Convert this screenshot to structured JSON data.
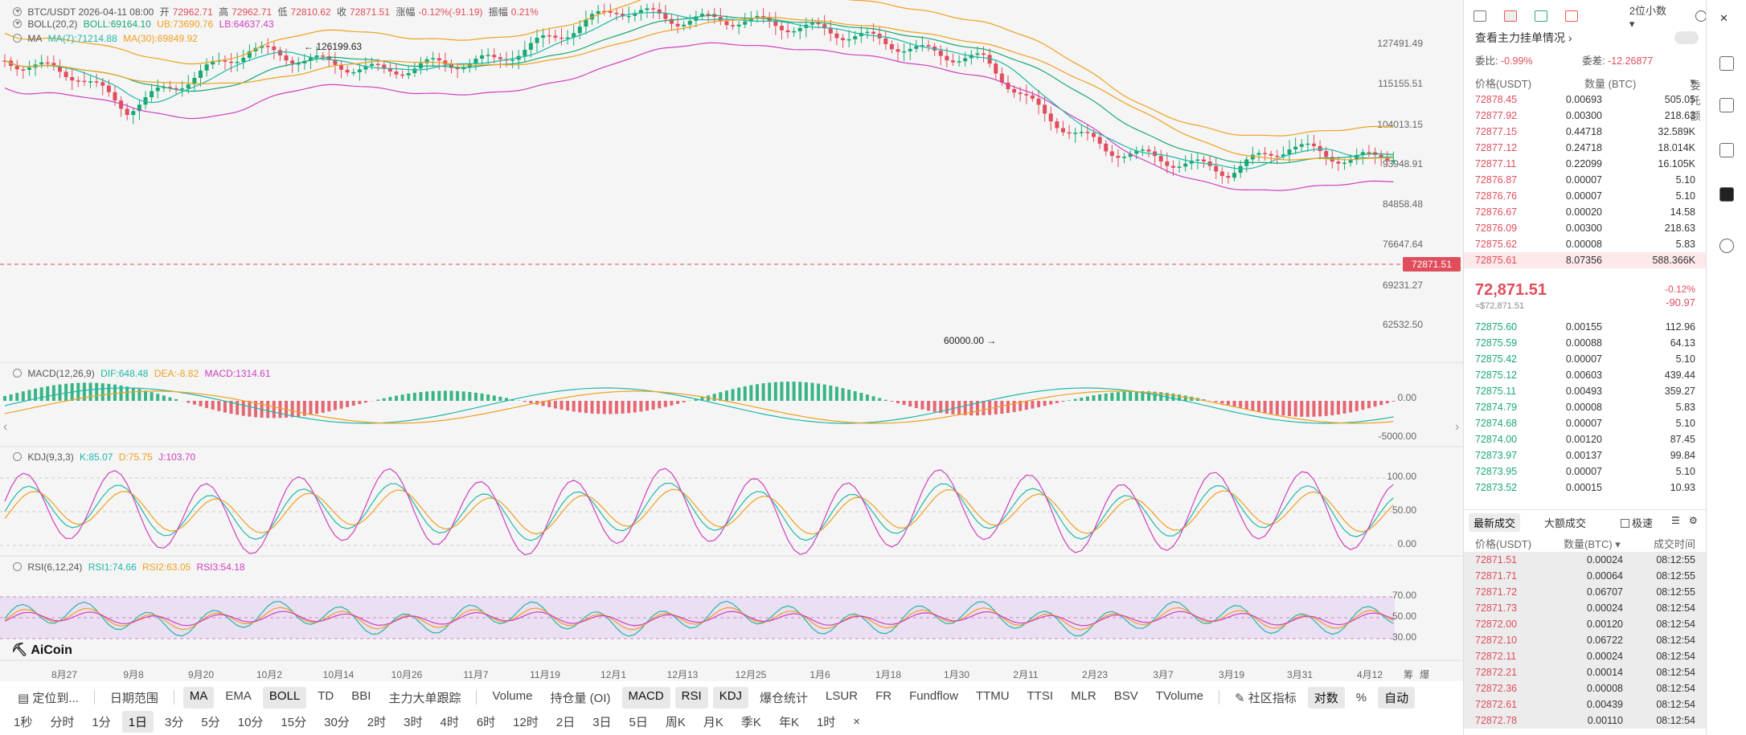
{
  "chart_header": {
    "pair_line": "BTC/USDT  2026-04-11 08:00",
    "open_label": "开",
    "open": "72962.71",
    "high_label": "高",
    "high": "72962.71",
    "low_label": "低",
    "low": "72810.62",
    "close_label": "收",
    "close": "72871.51",
    "change_label": "涨幅",
    "change": "-0.12%(-91.19)",
    "amp_label": "振幅",
    "amp": "0.21%",
    "boll": "BOLL(20,2)",
    "boll_mid": "BOLL:69164.10",
    "boll_ub": "UB:73690.76",
    "boll_lb": "LB:64637.43",
    "ma": "MA",
    "ma7": "MA(7):71214.88",
    "ma30": "MA(30):69849.92"
  },
  "price_axis": [
    "127491.49",
    "115155.51",
    "104013.15",
    "93948.91",
    "84858.48",
    "76647.64",
    "69231.27",
    "62532.50"
  ],
  "current_price_tag": "72871.51",
  "annotations": {
    "high": "126199.63",
    "low": "60000.00"
  },
  "macd": {
    "title": "MACD(12,26,9)",
    "dif": "DIF:648.48",
    "dea": "DEA:-8.82",
    "macd": "MACD:1314.61",
    "axis": [
      "0.00",
      "-5000.00"
    ]
  },
  "kdj": {
    "title": "KDJ(9,3,3)",
    "k": "K:85.07",
    "d": "D:75.75",
    "j": "J:103.70",
    "axis": [
      "100.00",
      "50.00",
      "0.00"
    ]
  },
  "rsi": {
    "title": "RSI(6,12,24)",
    "r1": "RSI1:74.66",
    "r2": "RSI2:63.05",
    "r3": "RSI3:54.18",
    "axis": [
      "70.00",
      "50.00",
      "30.00"
    ]
  },
  "logo": "AiCoin",
  "date_axis": [
    "8月27",
    "9月8",
    "9月20",
    "10月2",
    "10月14",
    "10月26",
    "11月7",
    "11月19",
    "12月1",
    "12月13",
    "12月25",
    "1月6",
    "1月18",
    "1月30",
    "2月11",
    "2月23",
    "3月7",
    "3月19",
    "3月31",
    "4月12"
  ],
  "corner_labels": [
    "筹",
    "爆"
  ],
  "toolbar1": {
    "locate": "定位到...",
    "range": "日期范围",
    "indicators": [
      "MA",
      "EMA",
      "BOLL",
      "TD",
      "BBI",
      "主力大单跟踪"
    ],
    "indicators_on": [
      "MA",
      "BOLL"
    ],
    "subs": [
      "Volume",
      "持仓量 (OI)",
      "MACD",
      "RSI",
      "KDJ",
      "爆仓统计",
      "LSUR",
      "FR",
      "Fundflow",
      "TTMU",
      "TTSI",
      "MLR",
      "BSV",
      "TVolume"
    ],
    "subs_on": [
      "MACD",
      "RSI",
      "KDJ"
    ],
    "community": "社区指标",
    "log": "对数",
    "pct": "%",
    "auto": "自动"
  },
  "toolbar2": {
    "intervals": [
      "1秒",
      "分时",
      "1分",
      "1日",
      "3分",
      "5分",
      "10分",
      "15分",
      "30分",
      "2时",
      "3时",
      "4时",
      "6时",
      "12时",
      "2日",
      "3日",
      "5日",
      "周K",
      "月K",
      "季K",
      "年K",
      "1时"
    ],
    "active": "1日",
    "close": "×"
  },
  "panel": {
    "precision": "2位小数",
    "depth_title": "查看主力挂单情况",
    "ratio_label": "委比:",
    "ratio": "-0.99%",
    "diff_label": "委差:",
    "diff": "-12.26877",
    "headers": {
      "price": "价格(USDT)",
      "qty": "数量 (BTC)",
      "total": "委托额"
    },
    "asks": [
      {
        "p": "72878.45",
        "q": "0.00693",
        "t": "505.05"
      },
      {
        "p": "72877.92",
        "q": "0.00300",
        "t": "218.63"
      },
      {
        "p": "72877.15",
        "q": "0.44718",
        "t": "32.589K"
      },
      {
        "p": "72877.12",
        "q": "0.24718",
        "t": "18.014K"
      },
      {
        "p": "72877.11",
        "q": "0.22099",
        "t": "16.105K"
      },
      {
        "p": "72876.87",
        "q": "0.00007",
        "t": "5.10"
      },
      {
        "p": "72876.76",
        "q": "0.00007",
        "t": "5.10"
      },
      {
        "p": "72876.67",
        "q": "0.00020",
        "t": "14.58"
      },
      {
        "p": "72876.09",
        "q": "0.00300",
        "t": "218.63"
      },
      {
        "p": "72875.62",
        "q": "0.00008",
        "t": "5.83"
      },
      {
        "p": "72875.61",
        "q": "8.07356",
        "t": "588.366K"
      }
    ],
    "last_price": "72,871.51",
    "last_sub": "≈$72,871.51",
    "last_pct": "-0.12%",
    "last_chg": "-90.97",
    "bids": [
      {
        "p": "72875.60",
        "q": "0.00155",
        "t": "112.96"
      },
      {
        "p": "72875.59",
        "q": "0.00088",
        "t": "64.13"
      },
      {
        "p": "72875.42",
        "q": "0.00007",
        "t": "5.10"
      },
      {
        "p": "72875.12",
        "q": "0.00603",
        "t": "439.44"
      },
      {
        "p": "72875.11",
        "q": "0.00493",
        "t": "359.27"
      },
      {
        "p": "72874.79",
        "q": "0.00008",
        "t": "5.83"
      },
      {
        "p": "72874.68",
        "q": "0.00007",
        "t": "5.10"
      },
      {
        "p": "72874.00",
        "q": "0.00120",
        "t": "87.45"
      },
      {
        "p": "72873.97",
        "q": "0.00137",
        "t": "99.84"
      },
      {
        "p": "72873.95",
        "q": "0.00007",
        "t": "5.10"
      },
      {
        "p": "72873.52",
        "q": "0.00015",
        "t": "10.93"
      }
    ],
    "trade_tabs": [
      "最新成交",
      "大额成交"
    ],
    "fast": "极速",
    "trade_headers": {
      "price": "价格(USDT)",
      "qty": "数量(BTC)",
      "time": "成交时间"
    },
    "trades": [
      {
        "p": "72871.51",
        "q": "0.00024",
        "t": "08:12:55"
      },
      {
        "p": "72871.71",
        "q": "0.00064",
        "t": "08:12:55"
      },
      {
        "p": "72871.72",
        "q": "0.06707",
        "t": "08:12:55"
      },
      {
        "p": "72871.73",
        "q": "0.00024",
        "t": "08:12:54"
      },
      {
        "p": "72872.00",
        "q": "0.00120",
        "t": "08:12:54"
      },
      {
        "p": "72872.10",
        "q": "0.06722",
        "t": "08:12:54"
      },
      {
        "p": "72872.11",
        "q": "0.00024",
        "t": "08:12:54"
      },
      {
        "p": "72872.21",
        "q": "0.00014",
        "t": "08:12:54"
      },
      {
        "p": "72872.36",
        "q": "0.00008",
        "t": "08:12:54"
      },
      {
        "p": "72872.61",
        "q": "0.00439",
        "t": "08:12:54"
      },
      {
        "p": "72872.78",
        "q": "0.00110",
        "t": "08:12:54"
      }
    ]
  }
}
